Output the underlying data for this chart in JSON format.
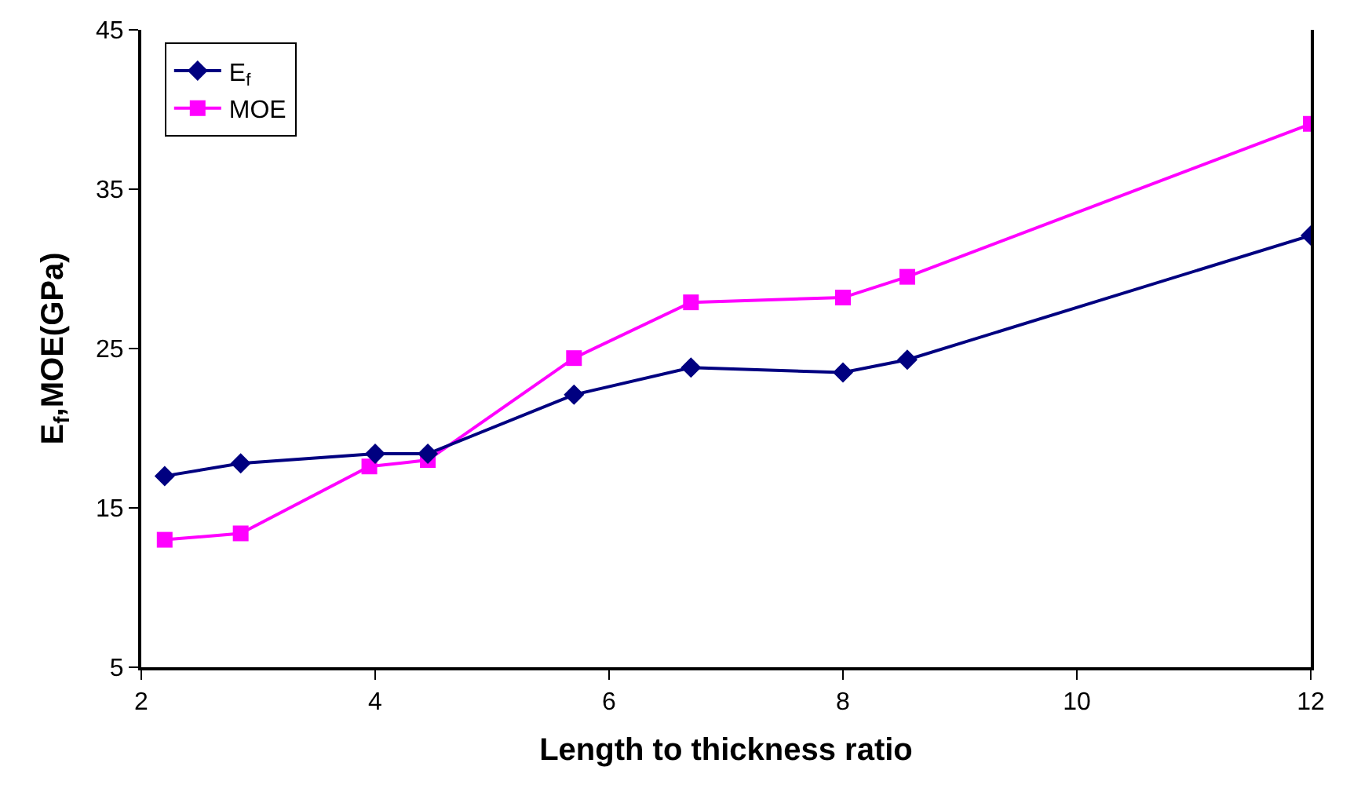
{
  "chart_data": {
    "type": "line",
    "xlabel": "Length to thickness ratio",
    "ylabel": "E$_{f}$,MOE(GPa)",
    "xlim": [
      2,
      12
    ],
    "xticks": [
      2,
      4,
      6,
      8,
      10,
      12
    ],
    "ylim": [
      5,
      45
    ],
    "yticks": [
      5,
      15,
      25,
      35,
      45
    ],
    "legend": "top left",
    "line_style": "solid",
    "series": [
      {
        "name": "E$_{f}$",
        "color": "#000080",
        "marker": "diamond",
        "x": [
          2.2,
          2.85,
          4.0,
          4.45,
          5.7,
          6.7,
          8.0,
          8.55,
          12
        ],
        "values": [
          17.0,
          17.8,
          18.4,
          18.4,
          22.1,
          23.8,
          23.5,
          24.3,
          32.1
        ]
      },
      {
        "name": "MOE",
        "color": "#ff00ff",
        "marker": "square",
        "x": [
          2.2,
          2.85,
          3.95,
          4.45,
          5.7,
          6.7,
          8.0,
          8.55,
          12
        ],
        "values": [
          13.0,
          13.4,
          17.6,
          18.0,
          24.4,
          27.9,
          28.2,
          29.5,
          39.1
        ]
      }
    ]
  }
}
